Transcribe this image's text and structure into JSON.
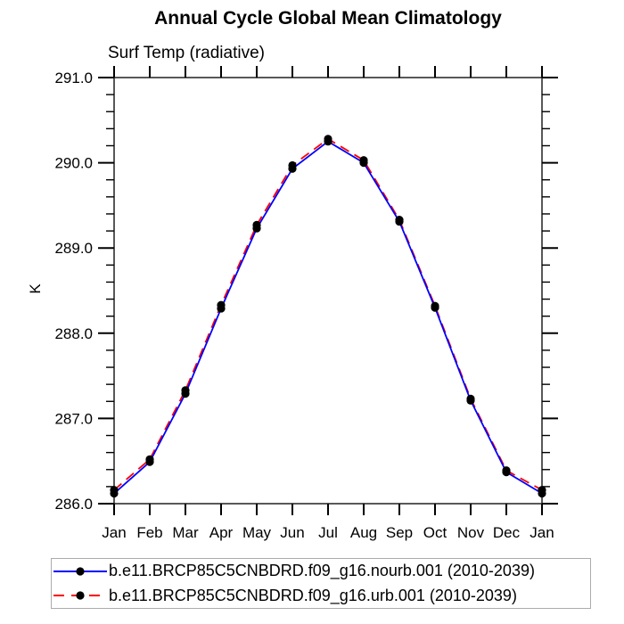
{
  "page_title": "Annual Cycle Global Mean Climatology",
  "colors": {
    "series1_line": "#0000ff",
    "series2_line": "#ff0000",
    "marker": "#000000",
    "axis": "#2e2e2e",
    "text": "#000000",
    "legend_border": "#ababab",
    "background": "#ffffff"
  },
  "chart_data": {
    "type": "line",
    "title": "Annual Cycle Global Mean Climatology",
    "subtitle": "Surf Temp (radiative)",
    "xlabel": "",
    "ylabel": "K",
    "ylim": [
      286.0,
      291.0
    ],
    "y_major_tick_step": 1.0,
    "y_minor_tick_step": 0.2,
    "y_tick_labels": [
      "286.0",
      "287.0",
      "288.0",
      "289.0",
      "290.0",
      "291.0"
    ],
    "categories": [
      "Jan",
      "Feb",
      "Mar",
      "Apr",
      "May",
      "Jun",
      "Jul",
      "Aug",
      "Sep",
      "Oct",
      "Nov",
      "Dec",
      "Jan"
    ],
    "grid": false,
    "legend_position": "bottom",
    "series": [
      {
        "name": "b.e11.BRCP85C5CNBDRD.f09_g16.nourb.001 (2010-2039)",
        "color": "#0000ff",
        "style": "solid",
        "marker": "filled-circle",
        "values": [
          286.12,
          286.49,
          287.29,
          288.29,
          289.23,
          289.93,
          290.25,
          290.0,
          289.31,
          288.3,
          287.21,
          286.37,
          286.12
        ]
      },
      {
        "name": "b.e11.BRCP85C5CNBDRD.f09_g16.urb.001 (2010-2039)",
        "color": "#ff0000",
        "style": "dashed",
        "marker": "filled-circle",
        "values": [
          286.16,
          286.52,
          287.33,
          288.33,
          289.27,
          289.97,
          290.28,
          290.03,
          289.33,
          288.32,
          287.23,
          286.39,
          286.16
        ]
      }
    ]
  }
}
